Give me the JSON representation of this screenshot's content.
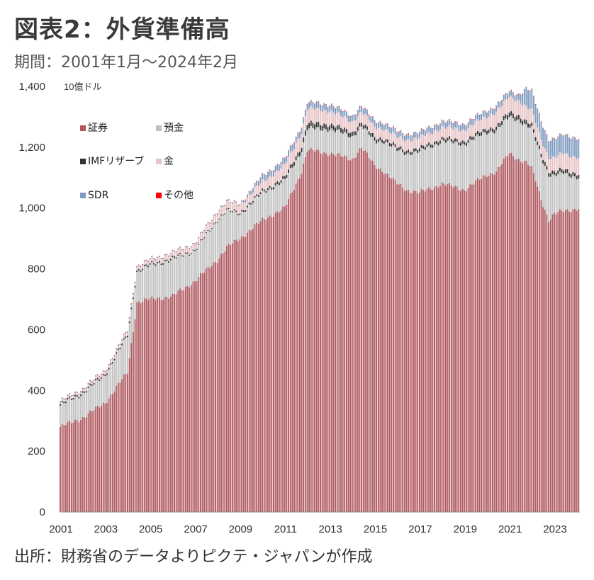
{
  "header": {
    "title": "図表2：外貨準備高",
    "period": "期間：2001年1月～2024年2月"
  },
  "footer": {
    "source": "出所：財務省のデータよりピクテ・ジャパンが作成"
  },
  "chart_data": {
    "type": "bar",
    "stacked": true,
    "title": "外貨準備高",
    "unit_label": "10億ドル",
    "ylim": [
      0,
      1400
    ],
    "yticks": [
      "0",
      "200",
      "400",
      "600",
      "800",
      "1,000",
      "1,200",
      "1,400"
    ],
    "xticks": [
      "2001",
      "2003",
      "2005",
      "2007",
      "2009",
      "2011",
      "2013",
      "2015",
      "2017",
      "2019",
      "2021",
      "2023"
    ],
    "legend_position": "top-left",
    "colors": {
      "securities": "#b05a60",
      "deposits": "#c2c2c2",
      "imf": "#333333",
      "gold": "#e8c4c6",
      "sdr": "#7f9bbf",
      "other": "#ff0000"
    },
    "anchor_dates": [
      "2001-01",
      "2002-01",
      "2003-01",
      "2004-01",
      "2004-06",
      "2005-01",
      "2006-01",
      "2007-01",
      "2008-01",
      "2008-06",
      "2009-01",
      "2010-01",
      "2011-01",
      "2011-10",
      "2012-01",
      "2013-01",
      "2014-01",
      "2014-06",
      "2015-01",
      "2015-06",
      "2016-01",
      "2016-06",
      "2017-01",
      "2018-01",
      "2019-01",
      "2020-01",
      "2020-06",
      "2021-01",
      "2021-06",
      "2021-10",
      "2022-01",
      "2022-06",
      "2022-10",
      "2023-01",
      "2023-06",
      "2024-02"
    ],
    "series": [
      {
        "name": "証券",
        "key": "securities",
        "values": [
          280,
          310,
          360,
          460,
          690,
          700,
          710,
          760,
          830,
          870,
          900,
          960,
          1000,
          1120,
          1190,
          1180,
          1160,
          1200,
          1140,
          1120,
          1080,
          1060,
          1050,
          1080,
          1060,
          1110,
          1120,
          1180,
          1160,
          1150,
          1130,
          1030,
          960,
          980,
          990,
          1000
        ]
      },
      {
        "name": "預金",
        "key": "deposits",
        "values": [
          70,
          80,
          90,
          120,
          100,
          110,
          120,
          100,
          130,
          120,
          80,
          90,
          90,
          70,
          70,
          80,
          75,
          70,
          80,
          100,
          110,
          120,
          135,
          140,
          150,
          140,
          135,
          120,
          130,
          120,
          130,
          140,
          150,
          125,
          125,
          100
        ]
      },
      {
        "name": "IMFリザーブ",
        "key": "imf",
        "values": [
          5,
          5,
          5,
          5,
          5,
          5,
          5,
          3,
          3,
          3,
          5,
          6,
          10,
          15,
          18,
          16,
          14,
          12,
          12,
          10,
          10,
          10,
          10,
          10,
          10,
          12,
          12,
          15,
          15,
          14,
          12,
          12,
          12,
          12,
          12,
          12
        ]
      },
      {
        "name": "金",
        "key": "gold",
        "values": [
          6,
          7,
          8,
          10,
          10,
          12,
          15,
          18,
          25,
          25,
          25,
          30,
          40,
          45,
          48,
          45,
          35,
          35,
          35,
          33,
          33,
          35,
          35,
          36,
          37,
          40,
          50,
          50,
          50,
          48,
          48,
          45,
          45,
          48,
          52,
          55
        ]
      },
      {
        "name": "SDR",
        "key": "sdr",
        "values": [
          3,
          3,
          3,
          3,
          3,
          3,
          3,
          3,
          3,
          3,
          4,
          19,
          20,
          20,
          20,
          20,
          19,
          19,
          19,
          18,
          18,
          18,
          18,
          19,
          19,
          19,
          19,
          19,
          19,
          60,
          62,
          60,
          58,
          60,
          62,
          62
        ]
      },
      {
        "name": "その他",
        "key": "other",
        "values": [
          1,
          1,
          1,
          1,
          1,
          1,
          1,
          1,
          1,
          1,
          1,
          1,
          1,
          1,
          1,
          1,
          1,
          1,
          1,
          1,
          1,
          1,
          1,
          1,
          1,
          1,
          1,
          1,
          1,
          1,
          1,
          1,
          1,
          1,
          1,
          1
        ]
      }
    ]
  }
}
